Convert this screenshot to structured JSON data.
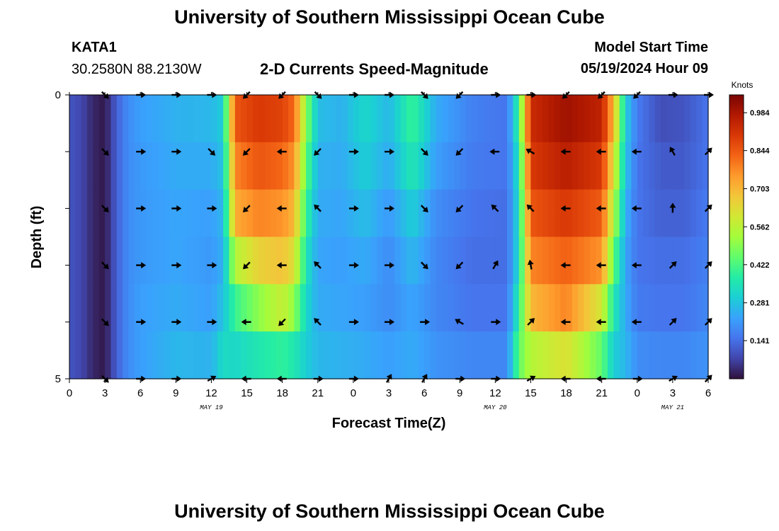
{
  "header": {
    "title": "University of Southern Mississippi Ocean Cube",
    "station_id": "KATA1",
    "station_coords": "30.2580N  88.2130W",
    "chart_title": "2-D Currents Speed-Magnitude",
    "model_start_label": "Model Start Time",
    "model_start_value": "05/19/2024 Hour 09"
  },
  "footer": {
    "title": "University of Southern Mississippi Ocean Cube"
  },
  "chart_data": {
    "type": "heatmap",
    "title": "2-D Currents Speed-Magnitude",
    "xlabel": "Forecast Time(Z)",
    "ylabel": "Depth (ft)",
    "x_range_hours": [
      0,
      54
    ],
    "x_tick_labels": [
      "0",
      "3",
      "6",
      "9",
      "12",
      "15",
      "18",
      "21",
      "0",
      "3",
      "6",
      "9",
      "12",
      "15",
      "18",
      "21",
      "0",
      "3",
      "6"
    ],
    "date_labels": [
      {
        "label": "MAY 19",
        "hour": 12
      },
      {
        "label": "MAY 20",
        "hour": 36
      },
      {
        "label": "MAY 21",
        "hour": 51
      }
    ],
    "y_range_ft": [
      0,
      5
    ],
    "y_tick_labels": [
      "0",
      "5"
    ],
    "colorbar": {
      "unit": "Knots",
      "min": 0.0,
      "max": 1.05,
      "ticks": [
        0.984,
        0.844,
        0.703,
        0.562,
        0.422,
        0.281,
        0.141
      ],
      "stops": [
        "#30123b",
        "#4145ab",
        "#4675ed",
        "#39a2fc",
        "#1bcfd4",
        "#24eca6",
        "#61fc6c",
        "#a4fc3b",
        "#d1e834",
        "#f3c63a",
        "#fe9b2d",
        "#f36315",
        "#d93806",
        "#b11901",
        "#7a0402"
      ]
    },
    "layers": 6,
    "hours_per_column": 0.5,
    "speed_keyframes_knots": [
      {
        "hour": 0,
        "values": [
          0.1,
          0.1,
          0.1,
          0.1,
          0.1,
          0.1
        ]
      },
      {
        "hour": 1,
        "values": [
          0.08,
          0.08,
          0.08,
          0.08,
          0.08,
          0.08
        ]
      },
      {
        "hour": 2,
        "values": [
          0.03,
          0.03,
          0.03,
          0.03,
          0.03,
          0.03
        ]
      },
      {
        "hour": 3,
        "values": [
          0.01,
          0.01,
          0.01,
          0.01,
          0.01,
          0.01
        ]
      },
      {
        "hour": 4,
        "values": [
          0.12,
          0.12,
          0.12,
          0.12,
          0.12,
          0.12
        ]
      },
      {
        "hour": 5,
        "values": [
          0.19,
          0.19,
          0.19,
          0.19,
          0.19,
          0.19
        ]
      },
      {
        "hour": 6,
        "values": [
          0.22,
          0.21,
          0.21,
          0.21,
          0.22,
          0.22
        ]
      },
      {
        "hour": 9,
        "values": [
          0.25,
          0.24,
          0.23,
          0.23,
          0.24,
          0.26
        ]
      },
      {
        "hour": 12,
        "values": [
          0.26,
          0.24,
          0.22,
          0.21,
          0.22,
          0.25
        ]
      },
      {
        "hour": 13,
        "values": [
          0.3,
          0.28,
          0.26,
          0.25,
          0.28,
          0.33
        ]
      },
      {
        "hour": 14,
        "values": [
          0.85,
          0.78,
          0.72,
          0.55,
          0.4,
          0.32
        ]
      },
      {
        "hour": 16,
        "values": [
          0.9,
          0.85,
          0.78,
          0.65,
          0.5,
          0.36
        ]
      },
      {
        "hour": 18,
        "values": [
          0.88,
          0.82,
          0.76,
          0.68,
          0.58,
          0.39
        ]
      },
      {
        "hour": 19,
        "values": [
          0.82,
          0.76,
          0.7,
          0.62,
          0.5,
          0.36
        ]
      },
      {
        "hour": 20,
        "values": [
          0.5,
          0.45,
          0.4,
          0.35,
          0.32,
          0.3
        ]
      },
      {
        "hour": 21,
        "values": [
          0.27,
          0.25,
          0.24,
          0.23,
          0.24,
          0.26
        ]
      },
      {
        "hour": 23,
        "values": [
          0.25,
          0.24,
          0.23,
          0.22,
          0.23,
          0.25
        ]
      },
      {
        "hour": 25,
        "values": [
          0.32,
          0.3,
          0.27,
          0.24,
          0.22,
          0.24
        ]
      },
      {
        "hour": 27,
        "values": [
          0.26,
          0.24,
          0.21,
          0.19,
          0.19,
          0.22
        ]
      },
      {
        "hour": 29,
        "values": [
          0.4,
          0.36,
          0.3,
          0.26,
          0.23,
          0.24
        ]
      },
      {
        "hour": 31,
        "values": [
          0.24,
          0.22,
          0.19,
          0.18,
          0.18,
          0.2
        ]
      },
      {
        "hour": 34,
        "values": [
          0.17,
          0.16,
          0.15,
          0.14,
          0.15,
          0.18
        ]
      },
      {
        "hour": 37,
        "values": [
          0.15,
          0.15,
          0.14,
          0.14,
          0.15,
          0.18
        ]
      },
      {
        "hour": 38,
        "values": [
          0.4,
          0.35,
          0.33,
          0.33,
          0.38,
          0.45
        ]
      },
      {
        "hour": 39,
        "values": [
          0.93,
          0.9,
          0.85,
          0.78,
          0.7,
          0.55
        ]
      },
      {
        "hour": 42,
        "values": [
          1.0,
          0.96,
          0.9,
          0.83,
          0.78,
          0.62
        ]
      },
      {
        "hour": 45,
        "values": [
          0.95,
          0.9,
          0.84,
          0.76,
          0.6,
          0.45
        ]
      },
      {
        "hour": 46,
        "values": [
          0.7,
          0.62,
          0.55,
          0.45,
          0.36,
          0.3
        ]
      },
      {
        "hour": 47,
        "values": [
          0.3,
          0.28,
          0.25,
          0.23,
          0.24,
          0.26
        ]
      },
      {
        "hour": 48,
        "values": [
          0.16,
          0.15,
          0.15,
          0.15,
          0.16,
          0.19
        ]
      },
      {
        "hour": 50,
        "values": [
          0.09,
          0.11,
          0.12,
          0.14,
          0.15,
          0.18
        ]
      },
      {
        "hour": 52,
        "values": [
          0.1,
          0.11,
          0.12,
          0.14,
          0.15,
          0.18
        ]
      },
      {
        "hour": 54,
        "values": [
          0.15,
          0.15,
          0.16,
          0.17,
          0.18,
          0.2
        ]
      }
    ],
    "vector_hours": [
      3,
      6,
      9,
      12,
      15,
      18,
      21,
      24,
      27,
      30,
      33,
      36,
      39,
      42,
      45,
      48,
      51,
      54
    ],
    "vector_depths_ft": [
      0,
      1,
      2,
      3,
      4,
      5
    ],
    "vector_directions_deg": [
      [
        -45,
        0,
        0,
        0,
        -135,
        -135,
        -45,
        0,
        0,
        -45,
        -135,
        0,
        0,
        -135,
        -135,
        -135,
        0,
        0
      ],
      [
        -45,
        0,
        0,
        -45,
        -135,
        180,
        -135,
        0,
        0,
        -45,
        -135,
        180,
        150,
        180,
        180,
        180,
        120,
        45
      ],
      [
        -45,
        0,
        0,
        0,
        -135,
        180,
        135,
        0,
        0,
        -45,
        -135,
        135,
        135,
        180,
        180,
        180,
        90,
        45
      ],
      [
        -45,
        0,
        0,
        0,
        -135,
        180,
        135,
        0,
        0,
        -45,
        -135,
        60,
        100,
        180,
        180,
        180,
        45,
        45
      ],
      [
        -45,
        0,
        0,
        0,
        180,
        -135,
        135,
        0,
        0,
        0,
        150,
        0,
        45,
        180,
        180,
        180,
        45,
        45
      ],
      [
        -45,
        0,
        0,
        30,
        180,
        180,
        0,
        0,
        60,
        60,
        0,
        0,
        30,
        180,
        180,
        0,
        30,
        45
      ]
    ]
  }
}
